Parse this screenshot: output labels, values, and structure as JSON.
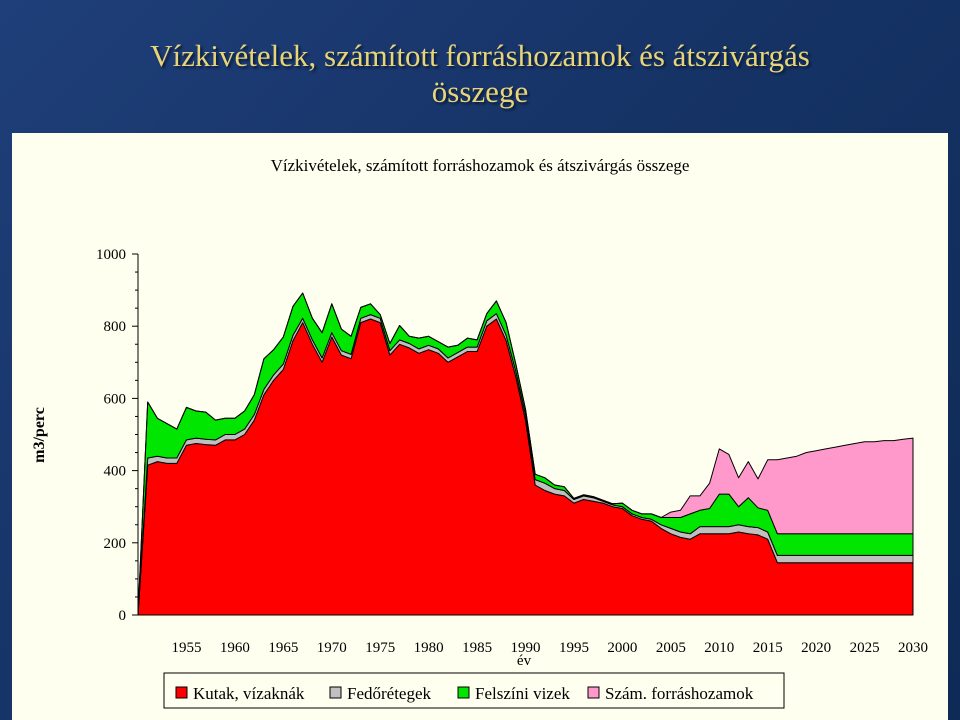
{
  "slide": {
    "title_line1": "Vízkivételek, számított forráshozamok és átszivárgás",
    "title_line2": "összege"
  },
  "chart_data": {
    "type": "area",
    "stacked": true,
    "title": "Vízkivételek, számított forráshozamok és átszivárgás összege",
    "xlabel": "év",
    "ylabel": "m3/perc",
    "ylim": [
      0,
      1000
    ],
    "xlim": [
      1950,
      2030
    ],
    "y_ticks": [
      0,
      200,
      400,
      600,
      800,
      1000
    ],
    "x_ticks": [
      1955,
      1960,
      1965,
      1970,
      1975,
      1980,
      1985,
      1990,
      1995,
      2000,
      2005,
      2010,
      2015,
      2020,
      2025,
      2030
    ],
    "legend_position": "bottom",
    "colors": {
      "kutak": "#ff0000",
      "fedo": "#c0c0c0",
      "felszini": "#00e600",
      "szam": "#ff99cc"
    },
    "x": [
      1950,
      1951,
      1952,
      1953,
      1954,
      1955,
      1956,
      1957,
      1958,
      1959,
      1960,
      1961,
      1962,
      1963,
      1964,
      1965,
      1966,
      1967,
      1968,
      1969,
      1970,
      1971,
      1972,
      1973,
      1974,
      1975,
      1976,
      1977,
      1978,
      1979,
      1980,
      1981,
      1982,
      1983,
      1984,
      1985,
      1986,
      1987,
      1988,
      1989,
      1990,
      1991,
      1992,
      1993,
      1994,
      1995,
      1996,
      1997,
      1998,
      1999,
      2000,
      2001,
      2002,
      2003,
      2004,
      2005,
      2006,
      2007,
      2008,
      2009,
      2010,
      2011,
      2012,
      2013,
      2014,
      2015,
      2016,
      2017,
      2018,
      2019,
      2020,
      2021,
      2022,
      2023,
      2024,
      2025,
      2026,
      2027,
      2028,
      2029,
      2030
    ],
    "series": [
      {
        "name": "Kutak, vízaknák",
        "key": "kutak",
        "values": [
          0,
          415,
          425,
          420,
          420,
          470,
          475,
          472,
          470,
          485,
          485,
          500,
          540,
          610,
          650,
          680,
          760,
          810,
          750,
          700,
          770,
          720,
          710,
          810,
          820,
          810,
          720,
          750,
          740,
          725,
          735,
          725,
          700,
          715,
          730,
          730,
          800,
          820,
          760,
          660,
          540,
          360,
          345,
          335,
          330,
          310,
          320,
          315,
          310,
          300,
          295,
          275,
          265,
          260,
          240,
          225,
          215,
          210,
          225,
          225,
          225,
          225,
          230,
          225,
          222,
          210,
          145,
          145,
          145,
          145,
          145,
          145,
          145,
          145,
          145,
          145,
          145,
          145,
          145,
          145,
          145
        ]
      },
      {
        "name": "Fedőrétegek",
        "key": "fedo",
        "values": [
          0,
          20,
          15,
          15,
          15,
          15,
          15,
          15,
          15,
          15,
          15,
          15,
          15,
          15,
          15,
          15,
          15,
          12,
          12,
          12,
          12,
          12,
          12,
          12,
          12,
          12,
          12,
          12,
          12,
          12,
          12,
          12,
          12,
          12,
          12,
          12,
          15,
          15,
          15,
          15,
          15,
          15,
          20,
          15,
          15,
          10,
          10,
          10,
          5,
          5,
          5,
          5,
          5,
          5,
          10,
          15,
          15,
          15,
          20,
          20,
          20,
          20,
          20,
          20,
          20,
          20,
          20,
          20,
          20,
          20,
          20,
          20,
          20,
          20,
          20,
          20,
          20,
          20,
          20,
          20,
          20
        ]
      },
      {
        "name": "Felszíni vizek",
        "key": "felszini",
        "values": [
          0,
          155,
          105,
          95,
          80,
          90,
          75,
          75,
          55,
          45,
          45,
          50,
          55,
          85,
          70,
          75,
          80,
          70,
          60,
          70,
          80,
          60,
          50,
          30,
          30,
          10,
          20,
          40,
          20,
          30,
          25,
          20,
          30,
          20,
          25,
          20,
          20,
          35,
          35,
          20,
          15,
          15,
          15,
          10,
          10,
          3,
          3,
          3,
          3,
          3,
          10,
          10,
          10,
          15,
          20,
          30,
          40,
          55,
          45,
          50,
          90,
          90,
          50,
          80,
          55,
          60,
          60,
          60,
          60,
          60,
          60,
          60,
          60,
          60,
          60,
          60,
          60,
          60,
          60,
          60,
          60
        ]
      },
      {
        "name": "Szám. forráshozamok",
        "key": "szam",
        "values": [
          0,
          0,
          0,
          0,
          0,
          0,
          0,
          0,
          0,
          0,
          0,
          0,
          0,
          0,
          0,
          0,
          0,
          0,
          0,
          0,
          0,
          0,
          0,
          0,
          0,
          0,
          0,
          0,
          0,
          0,
          0,
          0,
          0,
          0,
          0,
          0,
          0,
          0,
          0,
          0,
          0,
          0,
          0,
          0,
          0,
          0,
          0,
          0,
          0,
          0,
          0,
          0,
          0,
          0,
          0,
          15,
          20,
          50,
          40,
          70,
          125,
          110,
          80,
          100,
          80,
          140,
          205,
          210,
          215,
          225,
          230,
          235,
          240,
          245,
          250,
          255,
          255,
          258,
          258,
          262,
          265
        ]
      }
    ]
  }
}
